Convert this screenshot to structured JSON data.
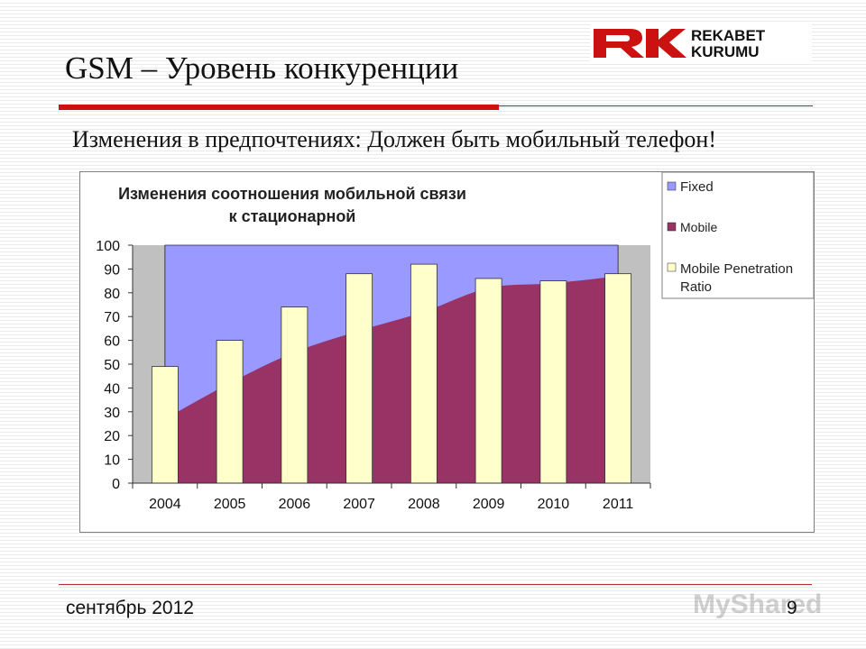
{
  "slide": {
    "title": "GSM – Уровень конкуренции",
    "subtitle": "Изменения в предпочтениях: Должен быть мобильный телефон!",
    "footer_date": "сентябрь 2012",
    "page_number": "9",
    "logo_line1": "REKABET",
    "logo_line2": "KURUMU",
    "watermark": "MyShared"
  },
  "colors": {
    "fixed": "#9999ff",
    "mobile": "#993366",
    "penetration": "#ffffcc",
    "accent_red": "#cc1111",
    "plot_side": "#c0c0c0"
  },
  "chart_data": {
    "type": "bar",
    "title_line1": "Изменения соотношения мобильной связи",
    "title_line2": "к стационарной",
    "categories": [
      "2004",
      "2005",
      "2006",
      "2007",
      "2008",
      "2009",
      "2010",
      "2011"
    ],
    "ylim": [
      0,
      100
    ],
    "yticks": [
      0,
      10,
      20,
      30,
      40,
      50,
      60,
      70,
      80,
      90,
      100
    ],
    "series": [
      {
        "name": "Fixed",
        "kind": "area",
        "values": [
          100,
          100,
          100,
          100,
          100,
          100,
          100,
          100
        ]
      },
      {
        "name": "Mobile",
        "kind": "area",
        "values": [
          27,
          42,
          55,
          64,
          72,
          82,
          84,
          87
        ]
      },
      {
        "name": "Mobile Penetration Ratio",
        "kind": "bar",
        "values": [
          49,
          60,
          74,
          88,
          92,
          86,
          85,
          88
        ]
      }
    ],
    "legend_position": "top-right",
    "grid": false
  }
}
